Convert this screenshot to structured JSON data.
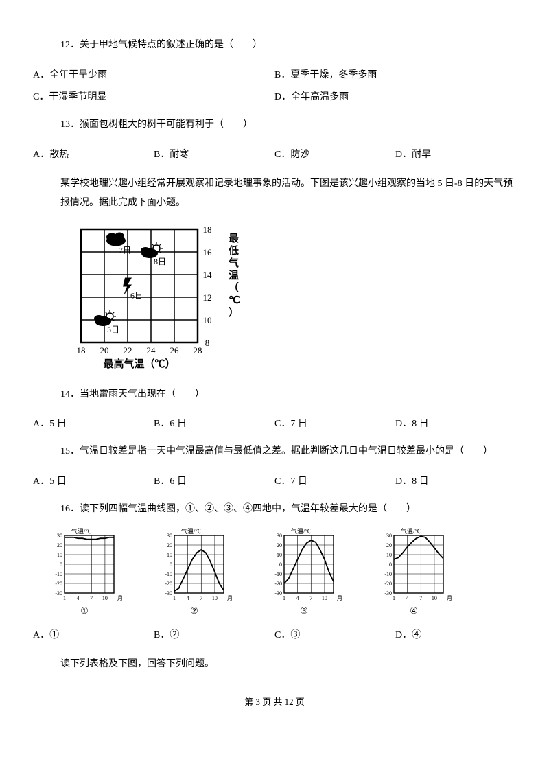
{
  "q12": {
    "text": "12．关于甲地气候特点的叙述正确的是（　　）",
    "optA": "A．全年干旱少雨",
    "optB": "B．夏季干燥，冬季多雨",
    "optC": "C．干湿季节明显",
    "optD": "D．全年高温多雨"
  },
  "q13": {
    "text": "13．猴面包树粗大的树干可能有利于（　　）",
    "optA": "A．散热",
    "optB": "B．耐寒",
    "optC": "C．防沙",
    "optD": "D．耐旱"
  },
  "passage1": "某学校地理兴趣小组经常开展观察和记录地理事象的活动。下图是该兴趣小组观察的当地 5 日-8 日的天气预报情况。据此完成下面小题。",
  "weather_chart": {
    "x_axis_label": "最高气温（℃）",
    "y_axis_label": "最低气温（℃）",
    "x_ticks": [
      18,
      20,
      22,
      24,
      26,
      28
    ],
    "y_ticks": [
      8,
      10,
      12,
      14,
      16,
      18
    ],
    "grid_color": "#000000",
    "points": [
      {
        "day": "5日",
        "x": 20,
        "y": 10,
        "icon": "cloudy-sun"
      },
      {
        "day": "6日",
        "x": 22,
        "y": 13,
        "icon": "thunder"
      },
      {
        "day": "7日",
        "x": 21,
        "y": 17,
        "icon": "cloud"
      },
      {
        "day": "8日",
        "x": 24,
        "y": 16,
        "icon": "sun-cloud"
      }
    ]
  },
  "q14": {
    "text": "14．当地雷雨天气出现在（　　）",
    "optA": "A．5 日",
    "optB": "B．6 日",
    "optC": "C．7 日",
    "optD": "D．8 日"
  },
  "q15": {
    "text": "15．气温日较差是指一天中气温最高值与最低值之差。据此判断这几日中气温日较差最小的是（　　）",
    "optA": "A．5 日",
    "optB": "B．6 日",
    "optC": "C．7 日",
    "optD": "D．8 日"
  },
  "q16": {
    "text": "16．读下列四幅气温曲线图，①、②、③、④四地中，气温年较差最大的是（　　）",
    "optA": "A．①",
    "optB": "B．②",
    "optC": "C．③",
    "optD": "D．④"
  },
  "temp_charts": {
    "y_label": "气温/℃",
    "x_label_ticks": [
      "1",
      "4",
      "7",
      "10",
      "月"
    ],
    "y_ticks": [
      -30,
      -20,
      -10,
      0,
      10,
      20,
      30
    ],
    "grid_color": "#000000",
    "charts": [
      {
        "label": "①",
        "series": [
          28,
          28,
          28,
          27,
          27,
          26,
          26,
          26,
          27,
          27,
          28,
          28
        ]
      },
      {
        "label": "②",
        "series": [
          -28,
          -25,
          -15,
          -5,
          5,
          12,
          15,
          12,
          3,
          -8,
          -20,
          -27
        ]
      },
      {
        "label": "③",
        "series": [
          -20,
          -15,
          -5,
          5,
          15,
          22,
          25,
          23,
          15,
          5,
          -8,
          -18
        ]
      },
      {
        "label": "④",
        "series": [
          5,
          7,
          12,
          18,
          23,
          27,
          29,
          28,
          23,
          17,
          11,
          6
        ]
      }
    ]
  },
  "passage2": "读下列表格及下图，回答下列问题。",
  "footer": "第 3 页 共 12 页"
}
